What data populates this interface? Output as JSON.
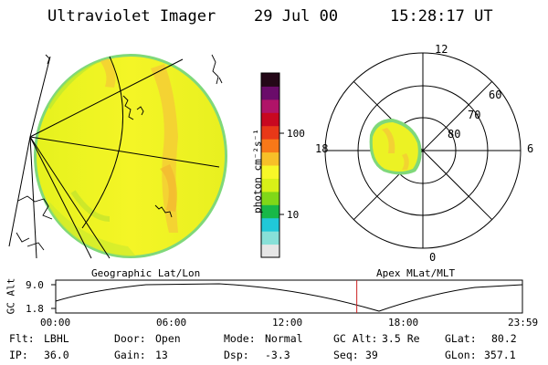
{
  "header": {
    "instrument": "Ultraviolet Imager",
    "date": "29 Jul 00",
    "time": "15:28:17 UT"
  },
  "colorbar": {
    "unit_label": "photon cm⁻²s⁻¹",
    "ticks": [
      "100",
      "10"
    ],
    "scale": "log",
    "colors": [
      "#e6e6e6",
      "#88e0d8",
      "#20c8d8",
      "#18b848",
      "#80d818",
      "#d8f018",
      "#f8f828",
      "#f8c028",
      "#f87818",
      "#e83818",
      "#c80820",
      "#b01468",
      "#6a0c6a",
      "#240818"
    ]
  },
  "polar": {
    "mlt_labels": {
      "top": "12",
      "right": "6",
      "bottom": "0",
      "left": "18"
    },
    "lat_labels": [
      "80",
      "70",
      "60"
    ]
  },
  "timeline": {
    "label_left": "Geographic Lat/Lon",
    "label_right": "Apex MLat/MLT",
    "axis_label": "GC Alt",
    "y_ticks": [
      "9.0",
      "1.8"
    ],
    "x_ticks": [
      "00:00",
      "06:00",
      "12:00",
      "18:00",
      "23:59"
    ],
    "marker_time": "15:28:17",
    "marker_color": "#cc2020"
  },
  "info": {
    "flt_label": "Flt:",
    "flt_value": "LBHL",
    "ip_label": "IP:",
    "ip_value": "36.0",
    "door_label": "Door:",
    "door_value": "Open",
    "gain_label": "Gain:",
    "gain_value": "13",
    "mode_label": "Mode:",
    "mode_value": "Normal",
    "dsp_label": "Dsp:",
    "dsp_value": "-3.3",
    "gcalt_label": "GC Alt:",
    "gcalt_value": "3.5 Re",
    "seq_label": "Seq:",
    "seq_value": "39",
    "glat_label": "GLat:",
    "glat_value": "80.2",
    "glon_label": "GLon:",
    "glon_value": "357.1"
  }
}
